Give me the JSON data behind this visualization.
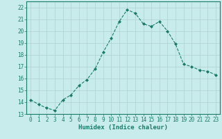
{
  "x": [
    0,
    1,
    2,
    3,
    4,
    5,
    6,
    7,
    8,
    9,
    10,
    11,
    12,
    13,
    14,
    15,
    16,
    17,
    18,
    19,
    20,
    21,
    22,
    23
  ],
  "y": [
    14.2,
    13.8,
    13.5,
    13.3,
    14.2,
    14.6,
    15.4,
    15.9,
    16.8,
    18.2,
    19.4,
    20.8,
    21.8,
    21.5,
    20.6,
    20.4,
    20.8,
    20.0,
    18.9,
    17.2,
    17.0,
    16.7,
    16.6,
    16.3
  ],
  "line_color": "#1a7a6a",
  "marker": "D",
  "marker_size": 2.0,
  "bg_color": "#c8ecec",
  "grid_color": "#b0d0d0",
  "xlabel": "Humidex (Indice chaleur)",
  "ylim": [
    13,
    22.5
  ],
  "xlim": [
    -0.5,
    23.5
  ],
  "yticks": [
    13,
    14,
    15,
    16,
    17,
    18,
    19,
    20,
    21,
    22
  ],
  "xticks": [
    0,
    1,
    2,
    3,
    4,
    5,
    6,
    7,
    8,
    9,
    10,
    11,
    12,
    13,
    14,
    15,
    16,
    17,
    18,
    19,
    20,
    21,
    22,
    23
  ],
  "label_fontsize": 6.5,
  "tick_fontsize": 5.5,
  "linewidth": 0.8
}
